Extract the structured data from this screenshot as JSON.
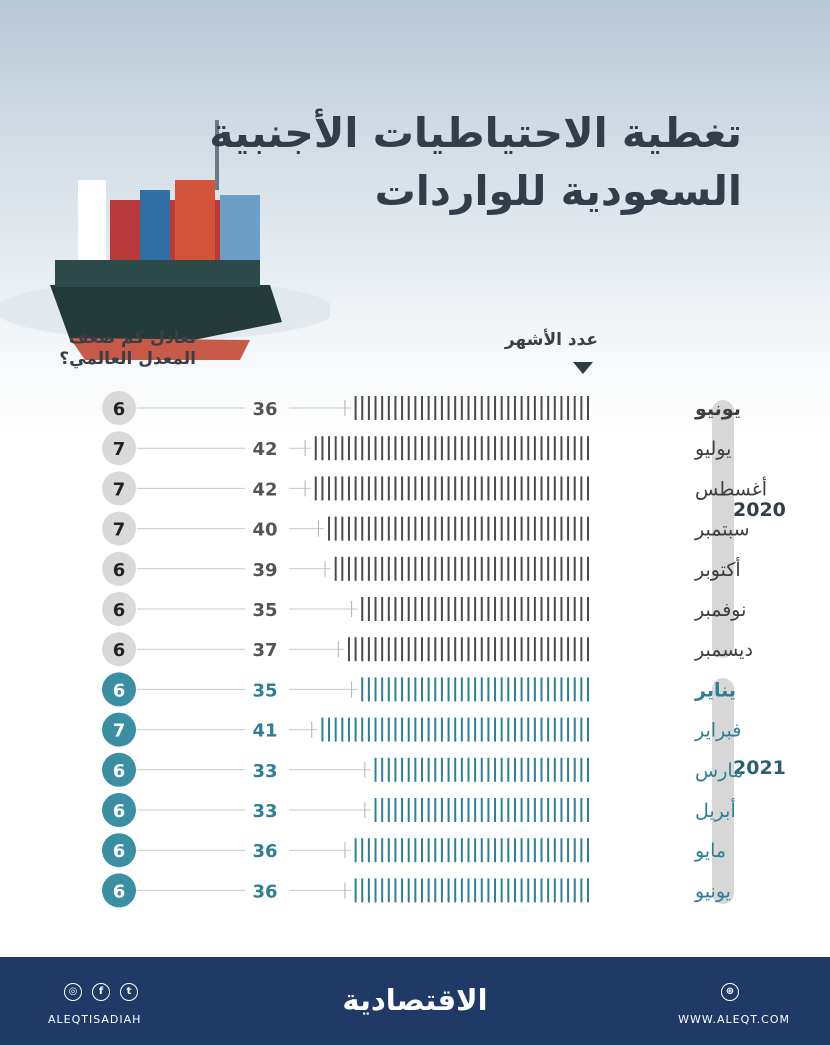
{
  "title": {
    "line1": "تغطية الاحتياطيات الأجنبية",
    "line2": "السعودية للواردات"
  },
  "headers": {
    "months": "عدد الأشهر",
    "ratio_line1": "تعادل كم ضعف",
    "ratio_line2": "المعدل العالمي؟"
  },
  "years": [
    "2020",
    "2021"
  ],
  "footer": {
    "logo": "الاقتصادية",
    "social": "ALEQTISADIAH",
    "website": "WWW.ALEQT.COM",
    "icons": [
      "instagram-icon",
      "facebook-icon",
      "twitter-icon",
      "web-icon"
    ]
  },
  "colors": {
    "y2020": "#3d3d3d",
    "y2021": "#2e7f96",
    "footer": "#1f3a66"
  },
  "chart_data": {
    "type": "bar",
    "orientation": "horizontal",
    "categories": [
      "يونيو",
      "يوليو",
      "أغسطس",
      "سبتمبر",
      "أكتوبر",
      "نوفمبر",
      "ديسمبر",
      "يناير",
      "فبراير",
      "مارس",
      "أبريل",
      "مايو",
      "يونيو"
    ],
    "years": [
      "2020",
      "2020",
      "2020",
      "2020",
      "2020",
      "2020",
      "2020",
      "2021",
      "2021",
      "2021",
      "2021",
      "2021",
      "2021"
    ],
    "series": [
      {
        "name": "عدد الأشهر",
        "values": [
          36,
          42,
          42,
          40,
          39,
          35,
          37,
          35,
          41,
          33,
          33,
          36,
          36
        ]
      },
      {
        "name": "تعادل كم ضعف المعدل العالمي؟",
        "values": [
          6,
          7,
          7,
          7,
          6,
          6,
          6,
          6,
          7,
          6,
          6,
          6,
          6
        ]
      }
    ],
    "bold_rows": [
      0,
      7
    ]
  }
}
